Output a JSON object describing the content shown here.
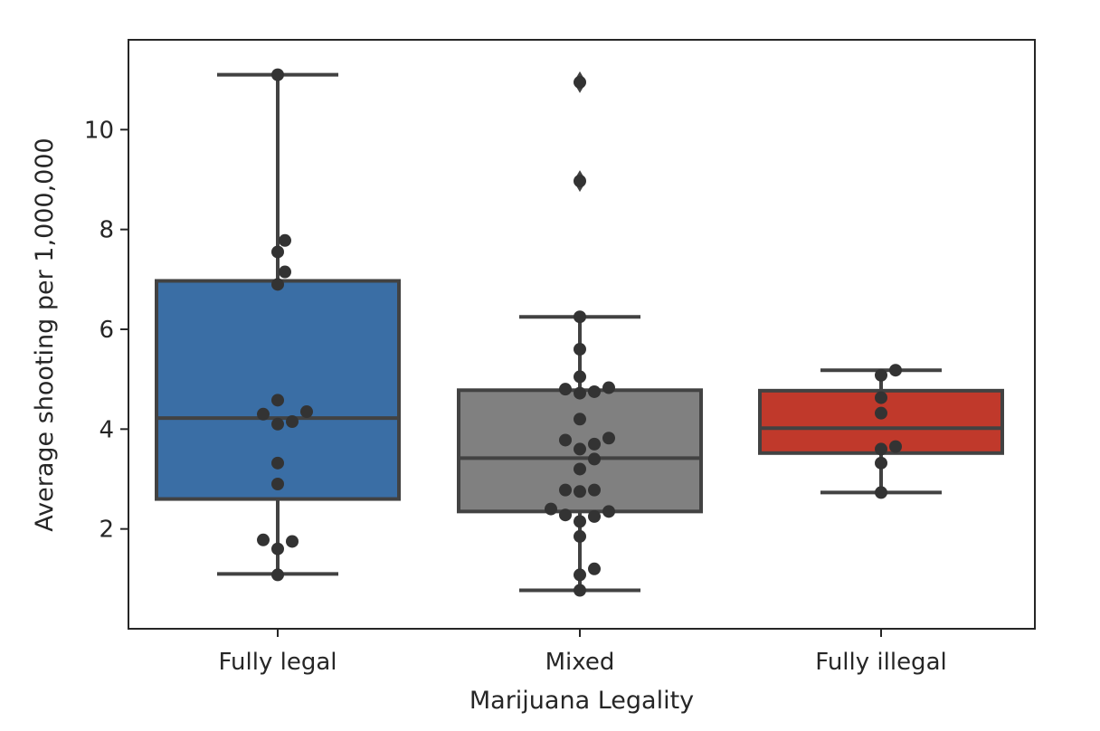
{
  "chart_data": {
    "type": "box",
    "xlabel": "Marijuana Legality",
    "ylabel": "Average shooting per 1,000,000",
    "ylim": [
      0.0,
      11.8
    ],
    "yticks": [
      2,
      4,
      6,
      8,
      10
    ],
    "grid": false,
    "categories": [
      "Fully legal",
      "Mixed",
      "Fully illegal"
    ],
    "series": [
      {
        "category": "Fully legal",
        "color": "#3a6ea5",
        "box": {
          "q1": 2.6,
          "median": 4.22,
          "q3": 6.97,
          "whisker_low": 1.1,
          "whisker_high": 11.1
        },
        "outliers": [],
        "points": [
          11.1,
          7.78,
          7.55,
          7.15,
          6.9,
          4.58,
          4.35,
          4.3,
          4.15,
          4.1,
          3.32,
          2.9,
          1.78,
          1.75,
          1.6,
          1.08
        ]
      },
      {
        "category": "Mixed",
        "color": "#808080",
        "box": {
          "q1": 2.35,
          "median": 3.42,
          "q3": 4.78,
          "whisker_low": 0.77,
          "whisker_high": 6.25
        },
        "outliers": [
          10.95,
          8.97
        ],
        "points": [
          10.95,
          8.97,
          6.25,
          5.6,
          5.05,
          4.83,
          4.8,
          4.75,
          4.72,
          4.2,
          3.82,
          3.78,
          3.7,
          3.6,
          3.4,
          3.2,
          2.78,
          2.78,
          2.75,
          2.4,
          2.35,
          2.28,
          2.25,
          2.15,
          1.85,
          1.2,
          1.08,
          0.77
        ]
      },
      {
        "category": "Fully illegal",
        "color": "#c0392b",
        "box": {
          "q1": 3.52,
          "median": 4.02,
          "q3": 4.77,
          "whisker_low": 2.73,
          "whisker_high": 5.18
        },
        "outliers": [],
        "points": [
          5.18,
          5.08,
          4.63,
          4.32,
          3.65,
          3.6,
          3.32,
          2.73
        ]
      }
    ]
  }
}
